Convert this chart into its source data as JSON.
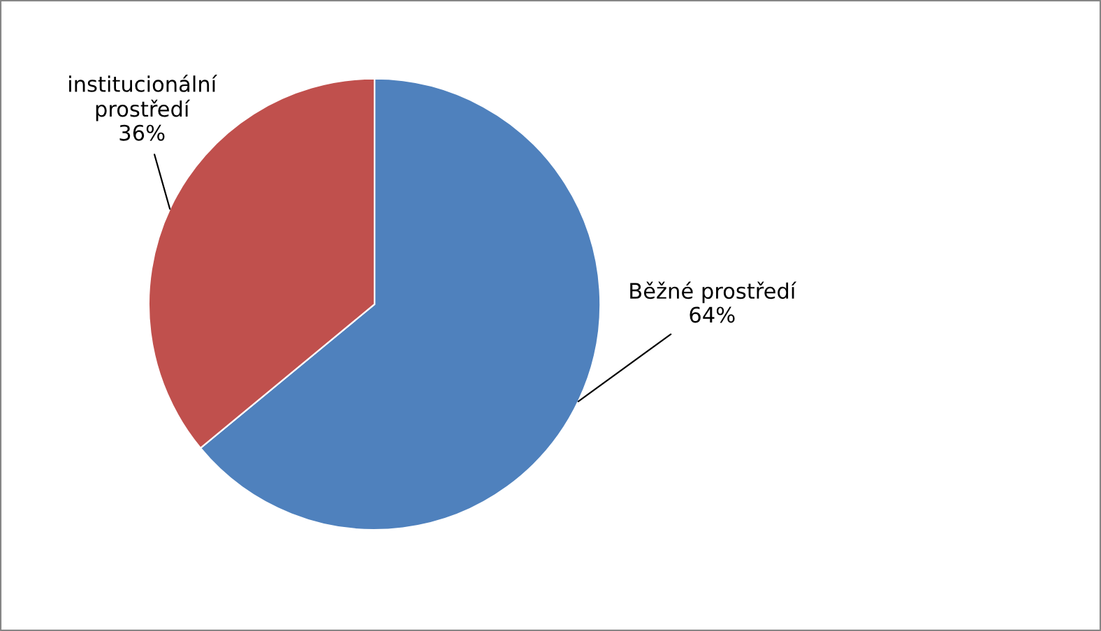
{
  "chart_data": {
    "type": "pie",
    "categories": [
      "Běžné prostředí",
      "institucionální\nprostředí"
    ],
    "values": [
      64,
      36
    ],
    "value_labels": [
      "64%",
      "36%"
    ],
    "colors": [
      "#4f81bd",
      "#c0504d"
    ]
  }
}
